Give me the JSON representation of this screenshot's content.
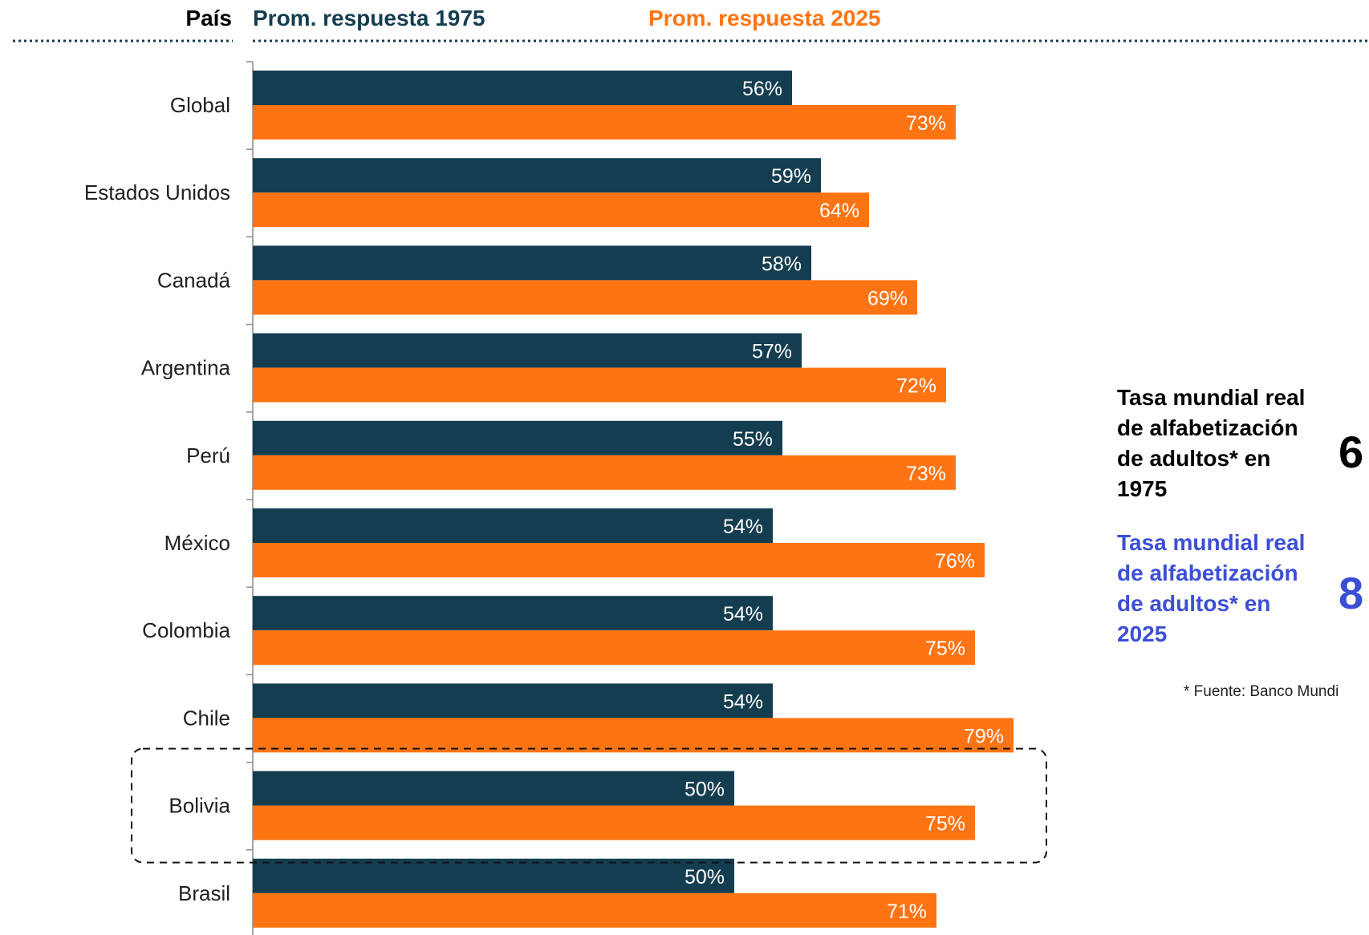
{
  "colors": {
    "series_1975": "#143d50",
    "series_2025": "#ff7412",
    "side_2025_text": "#3b4fd6",
    "side_1975_text": "#000000"
  },
  "header": {
    "country_label": "País",
    "series_1975_label": "Prom. respuesta 1975",
    "series_2025_label": "Prom. respuesta 2025"
  },
  "chart_data": {
    "type": "bar",
    "orientation": "horizontal",
    "categories": [
      "Global",
      "Estados Unidos",
      "Canadá",
      "Argentina",
      "Perú",
      "México",
      "Colombia",
      "Chile",
      "Bolivia",
      "Brasil"
    ],
    "series": [
      {
        "name": "Prom. respuesta 1975",
        "values": [
          56,
          59,
          58,
          57,
          55,
          54,
          54,
          54,
          50,
          50
        ]
      },
      {
        "name": "Prom. respuesta 2025",
        "values": [
          73,
          64,
          69,
          72,
          73,
          76,
          75,
          79,
          75,
          71
        ]
      }
    ],
    "value_suffix": "%",
    "xlim": [
      0,
      100
    ],
    "highlighted_category": "Bolivia",
    "legend_position": "top"
  },
  "side_panel": {
    "block_1975": {
      "text": "Tasa mundial real de alfabetización de adultos* en 1975",
      "value": "6"
    },
    "block_2025": {
      "text": "Tasa mundial real de alfabetización de adultos* en 2025",
      "value": "8"
    },
    "source_note": "* Fuente: Banco Mundi"
  }
}
